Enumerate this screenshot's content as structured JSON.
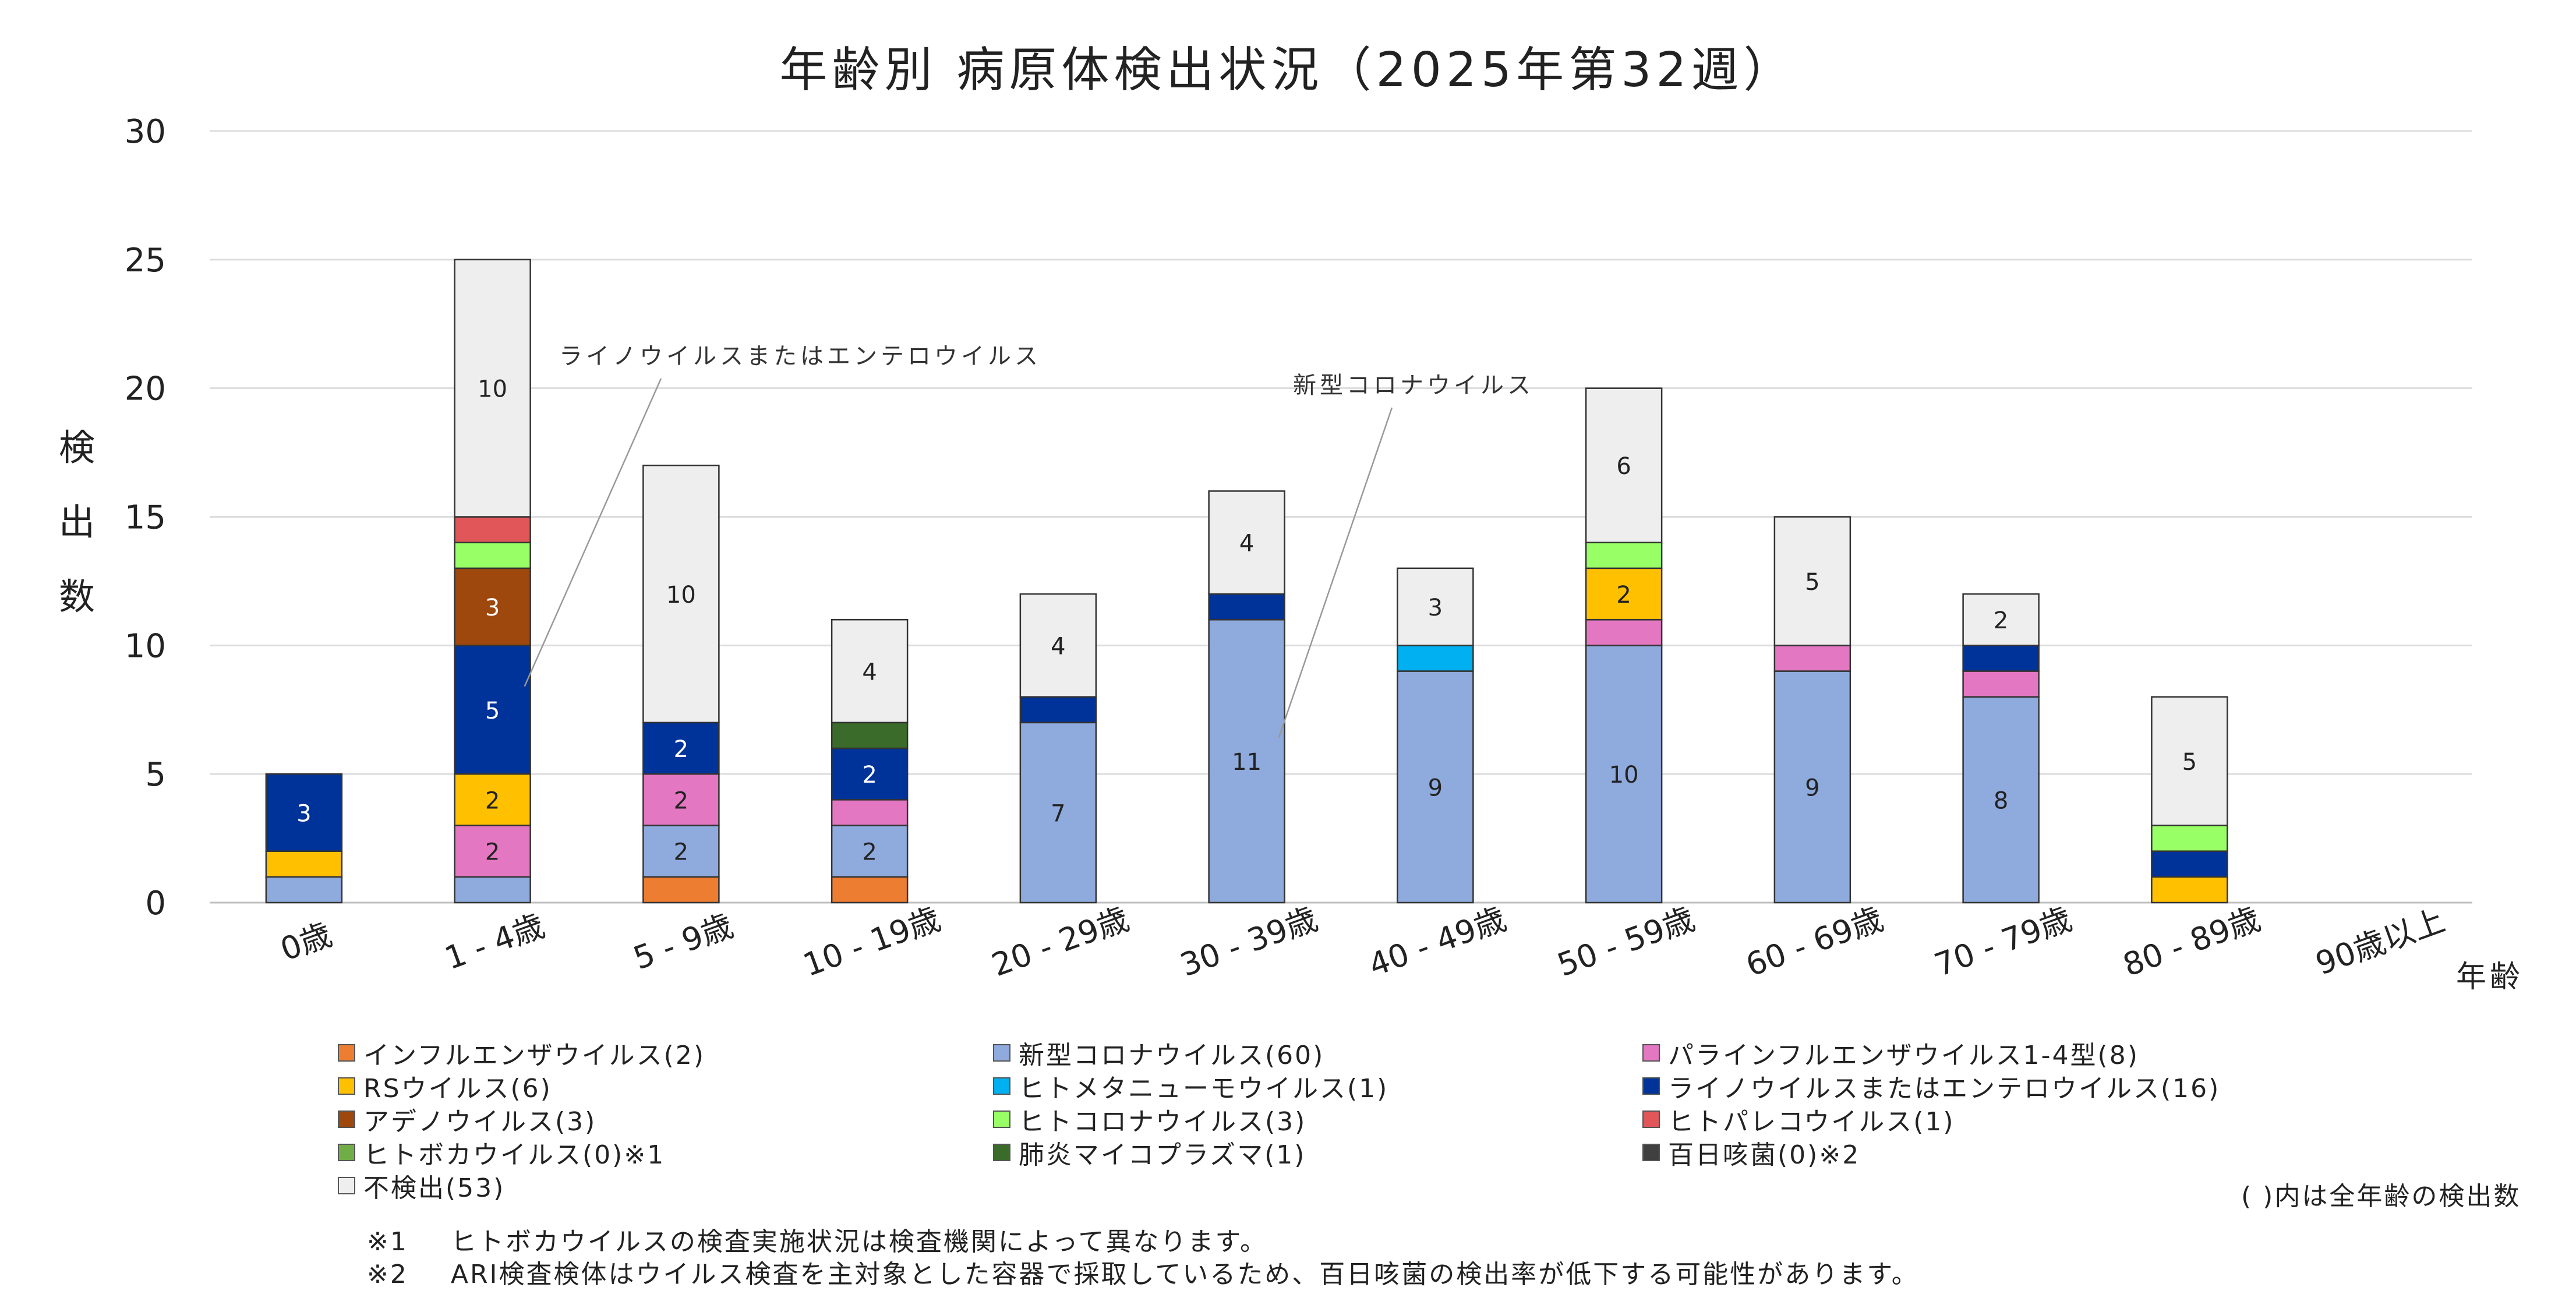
{
  "chart_data": {
    "type": "bar",
    "stacked": true,
    "title": "年齢別 病原体検出状況（2025年第32週）",
    "ylabel": "検出数",
    "xlabel": "年齢",
    "ylim": [
      0,
      30
    ],
    "yticks": [
      0,
      5,
      10,
      15,
      20,
      25,
      30
    ],
    "categories": [
      "0歳",
      "1 - 4歳",
      "5 - 9歳",
      "10 - 19歳",
      "20 - 29歳",
      "30 - 39歳",
      "40 - 49歳",
      "50 - 59歳",
      "60 - 69歳",
      "70 - 79歳",
      "80 - 89歳",
      "90歳以上"
    ],
    "series": [
      {
        "name": "インフルエンザウイルス(2)",
        "color": "#ED7D31",
        "values": [
          0,
          0,
          1,
          1,
          0,
          0,
          0,
          0,
          0,
          0,
          0,
          0
        ]
      },
      {
        "name": "新型コロナウイルス(60)",
        "color": "#8FAADC",
        "values": [
          1,
          1,
          2,
          2,
          7,
          11,
          9,
          10,
          9,
          8,
          0,
          0
        ]
      },
      {
        "name": "パラインフルエンザウイルス1-4型(8)",
        "color": "#E377C2",
        "values": [
          0,
          2,
          2,
          1,
          0,
          0,
          0,
          1,
          1,
          1,
          0,
          0
        ]
      },
      {
        "name": "RSウイルス(6)",
        "color": "#FFC000",
        "values": [
          1,
          2,
          0,
          0,
          0,
          0,
          0,
          2,
          0,
          0,
          1,
          0
        ]
      },
      {
        "name": "ヒトメタニューモウイルス(1)",
        "color": "#00B0F0",
        "values": [
          0,
          0,
          0,
          0,
          0,
          0,
          1,
          0,
          0,
          0,
          0,
          0
        ]
      },
      {
        "name": "ライノウイルスまたはエンテロウイルス(16)",
        "color": "#003399",
        "values": [
          3,
          5,
          2,
          2,
          1,
          1,
          0,
          0,
          0,
          1,
          1,
          0
        ]
      },
      {
        "name": "アデノウイルス(3)",
        "color": "#9E480E",
        "values": [
          0,
          3,
          0,
          0,
          0,
          0,
          0,
          0,
          0,
          0,
          0,
          0
        ]
      },
      {
        "name": "ヒトコロナウイルス(3)",
        "color": "#99FF66",
        "values": [
          0,
          1,
          0,
          0,
          0,
          0,
          0,
          1,
          0,
          0,
          1,
          0
        ]
      },
      {
        "name": "ヒトパレコウイルス(1)",
        "color": "#E15759",
        "values": [
          0,
          1,
          0,
          0,
          0,
          0,
          0,
          0,
          0,
          0,
          0,
          0
        ]
      },
      {
        "name": "ヒトボカウイルス(0)※1",
        "color": "#70AD47",
        "values": [
          0,
          0,
          0,
          0,
          0,
          0,
          0,
          0,
          0,
          0,
          0,
          0
        ]
      },
      {
        "name": "肺炎マイコプラズマ(1)",
        "color": "#3A6B2A",
        "values": [
          0,
          0,
          0,
          1,
          0,
          0,
          0,
          0,
          0,
          0,
          0,
          0
        ]
      },
      {
        "name": "百日咳菌(0)※2",
        "color": "#404040",
        "values": [
          0,
          0,
          0,
          0,
          0,
          0,
          0,
          0,
          0,
          0,
          0,
          0
        ]
      },
      {
        "name": "不検出(53)",
        "color": "#EEEEEE",
        "values": [
          0,
          10,
          10,
          4,
          4,
          4,
          3,
          6,
          5,
          2,
          5,
          0
        ]
      }
    ],
    "data_labels": [
      {
        "category": "0歳",
        "series": "ライノウイルスまたはエンテロウイルス(16)",
        "text": "3"
      },
      {
        "category": "1 - 4歳",
        "series": "新型コロナウイルス(60)",
        "text": ""
      },
      {
        "category": "1 - 4歳",
        "series": "パラインフルエンザウイルス1-4型(8)",
        "text": "2"
      },
      {
        "category": "1 - 4歳",
        "series": "RSウイルス(6)",
        "text": "2"
      },
      {
        "category": "1 - 4歳",
        "series": "ライノウイルスまたはエンテロウイルス(16)",
        "text": "5"
      },
      {
        "category": "1 - 4歳",
        "series": "アデノウイルス(3)",
        "text": "3"
      },
      {
        "category": "1 - 4歳",
        "series": "不検出(53)",
        "text": "10"
      },
      {
        "category": "5 - 9歳",
        "series": "新型コロナウイルス(60)",
        "text": "2"
      },
      {
        "category": "5 - 9歳",
        "series": "パラインフルエンザウイルス1-4型(8)",
        "text": "2"
      },
      {
        "category": "5 - 9歳",
        "series": "ライノウイルスまたはエンテロウイルス(16)",
        "text": "2"
      },
      {
        "category": "5 - 9歳",
        "series": "不検出(53)",
        "text": "10"
      },
      {
        "category": "10 - 19歳",
        "series": "新型コロナウイルス(60)",
        "text": "2"
      },
      {
        "category": "10 - 19歳",
        "series": "ライノウイルスまたはエンテロウイルス(16)",
        "text": "2"
      },
      {
        "category": "10 - 19歳",
        "series": "不検出(53)",
        "text": "4"
      },
      {
        "category": "20 - 29歳",
        "series": "新型コロナウイルス(60)",
        "text": "7"
      },
      {
        "category": "20 - 29歳",
        "series": "不検出(53)",
        "text": "4"
      },
      {
        "category": "30 - 39歳",
        "series": "新型コロナウイルス(60)",
        "text": "11"
      },
      {
        "category": "30 - 39歳",
        "series": "不検出(53)",
        "text": "4"
      },
      {
        "category": "40 - 49歳",
        "series": "新型コロナウイルス(60)",
        "text": "9"
      },
      {
        "category": "40 - 49歳",
        "series": "不検出(53)",
        "text": "3"
      },
      {
        "category": "50 - 59歳",
        "series": "新型コロナウイルス(60)",
        "text": "10"
      },
      {
        "category": "50 - 59歳",
        "series": "RSウイルス(6)",
        "text": "2"
      },
      {
        "category": "50 - 59歳",
        "series": "不検出(53)",
        "text": "6"
      },
      {
        "category": "60 - 69歳",
        "series": "新型コロナウイルス(60)",
        "text": "9"
      },
      {
        "category": "60 - 69歳",
        "series": "不検出(53)",
        "text": "5"
      },
      {
        "category": "70 - 79歳",
        "series": "新型コロナウイルス(60)",
        "text": "8"
      },
      {
        "category": "70 - 79歳",
        "series": "不検出(53)",
        "text": "2"
      },
      {
        "category": "80 - 89歳",
        "series": "不検出(53)",
        "text": "5"
      }
    ],
    "annotations": [
      {
        "text": "ライノウイルスまたはエンテロウイルス",
        "category": "1 - 4歳",
        "series": "ライノウイルスまたはエンテロウイルス(16)"
      },
      {
        "text": "新型コロナウイルス",
        "category": "30 - 39歳",
        "series": "新型コロナウイルス(60)"
      }
    ],
    "legend_position": "bottom",
    "legend_note": "( )内は全年齢の検出数",
    "grid": true
  },
  "footnotes": [
    {
      "mark": "※1",
      "text": "ヒトボカウイルスの検査実施状況は検査機関によって異なります。"
    },
    {
      "mark": "※2",
      "text": "ARI検査検体はウイルス検査を主対象とした容器で採取しているため、百日咳菌の検出率が低下する可能性があります。"
    }
  ]
}
